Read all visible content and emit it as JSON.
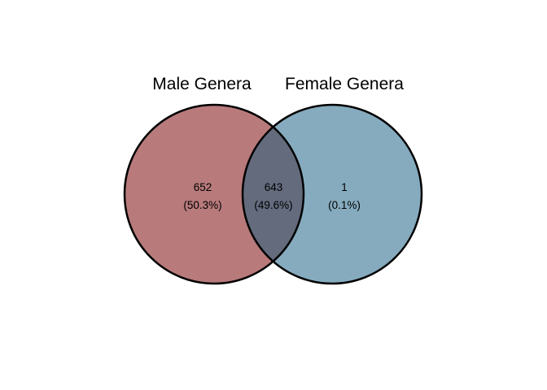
{
  "venn": {
    "sets": [
      {
        "label": "Male Genera",
        "fill": "#b87a7b",
        "stroke": "#000000"
      },
      {
        "label": "Female Genera",
        "fill": "#86abbe",
        "stroke": "#000000"
      }
    ],
    "intersection_fill": "#646b7d",
    "regions": {
      "male_only": {
        "count": "652",
        "percent": "(50.3%)"
      },
      "both": {
        "count": "643",
        "percent": "(49.6%)"
      },
      "female_only": {
        "count": "1",
        "percent": "(0.1%)"
      }
    }
  }
}
